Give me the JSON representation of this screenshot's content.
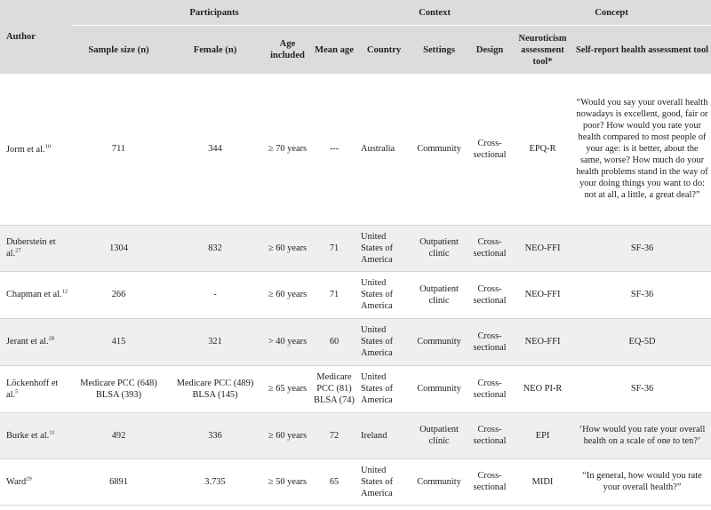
{
  "header": {
    "author": "Author",
    "groups": {
      "participants": "Participants",
      "context": "Context",
      "concept": "Concept"
    },
    "cols": {
      "sample_size": "Sample size (n)",
      "female": "Female (n)",
      "age_included": "Age included",
      "mean_age": "Mean age",
      "country": "Country",
      "settings": "Settings",
      "design": "Design",
      "neuroticism_tool": "Neuroticism assessment tool*",
      "health_tool": "Self-report health assessment tool"
    }
  },
  "rows": [
    {
      "author": "Jorm et al.",
      "ref": "10",
      "sample_size": "711",
      "female": "344",
      "age_included": "≥ 70 years",
      "mean_age": "---",
      "country": "Australia",
      "settings": "Community",
      "design": "Cross-sectional",
      "neuroticism_tool": "EPQ-R",
      "health_tool": "“Would you say your overall health nowadays is excellent, good, fair or poor? How would you rate your health compared to most people of your age: is it better, about the same, worse? How much do your health problems stand in the way of your doing things you want to do: not at all, a little, a great deal?”"
    },
    {
      "author": "Duberstein et al.",
      "ref": "27",
      "sample_size": "1304",
      "female": "832",
      "age_included": "≥ 60 years",
      "mean_age": "71",
      "country": "United States of America",
      "settings": "Outpatient clinic",
      "design": "Cross-sectional",
      "neuroticism_tool": "NEO-FFI",
      "health_tool": "SF-36"
    },
    {
      "author": "Chapman et al.",
      "ref": "12",
      "sample_size": "266",
      "female": "-",
      "age_included": "≥ 60 years",
      "mean_age": "71",
      "country": "United States of America",
      "settings": "Outpatient clinic",
      "design": "Cross-sectional",
      "neuroticism_tool": "NEO-FFI",
      "health_tool": "SF-36"
    },
    {
      "author": "Jerant et al.",
      "ref": "28",
      "sample_size": "415",
      "female": "321",
      "age_included": "> 40 years",
      "mean_age": "60",
      "country": "United States of America",
      "settings": "Community",
      "design": "Cross-sectional",
      "neuroticism_tool": "NEO-FFI",
      "health_tool": "EQ-5D"
    },
    {
      "author": "Löckenhoff et al.",
      "ref": "5",
      "sample_size": "Medicare PCC (648) BLSA (393)",
      "female": "Medicare PCC (489) BLSA (145)",
      "age_included": "≥ 65 years",
      "mean_age": "Medicare PCC (81) BLSA (74)",
      "country": "United States of America",
      "settings": "Community",
      "design": "Cross-sectional",
      "neuroticism_tool": "NEO PI-R",
      "health_tool": "SF-36"
    },
    {
      "author": "Burke et al.",
      "ref": "11",
      "sample_size": "492",
      "female": "336",
      "age_included": "≥ 60 years",
      "mean_age": "72",
      "country": "Ireland",
      "settings": "Outpatient clinic",
      "design": "Cross-sectional",
      "neuroticism_tool": "EPI",
      "health_tool": "‘How would you rate your overall health on a scale of one to ten?’"
    },
    {
      "author": "Ward",
      "ref": "29",
      "sample_size": "6891",
      "female": "3.735",
      "age_included": "≥ 50 years",
      "mean_age": "65",
      "country": "United States of America",
      "settings": "Community",
      "design": "Cross-sectional",
      "neuroticism_tool": "MIDI",
      "health_tool": "“In general, how would you rate your overall health?”"
    }
  ]
}
